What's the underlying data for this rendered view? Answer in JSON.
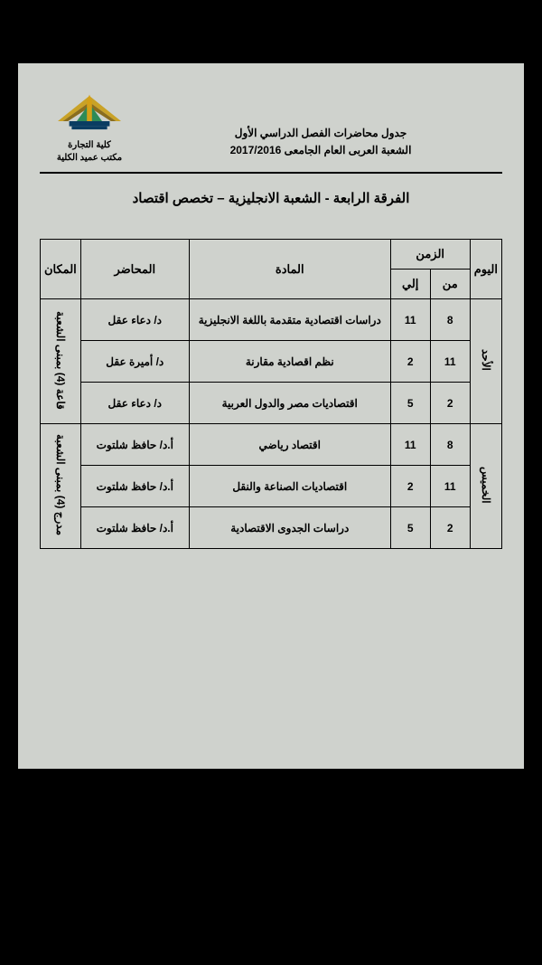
{
  "header": {
    "line1": "جدول محاضرات الفصل الدراسي الأول",
    "line2": "الشعبة العربى العام الجامعى 2017/2016",
    "faculty": "كلية التجارة",
    "office": "مكتب عميد الكلية"
  },
  "page_title": "الفرقة الرابعة  - الشعبة الانجليزية – تخصص اقتصاد",
  "columns": {
    "day": "اليوم",
    "time": "الزمن",
    "from": "من",
    "to": "إلي",
    "subject": "المادة",
    "lecturer": "المحاضر",
    "place": "المكان"
  },
  "days": [
    {
      "name": "الأحد",
      "place": "قاعة (4) بمبنى الشعبة",
      "rows": [
        {
          "from": "8",
          "to": "11",
          "subject": "دراسات اقتصادية متقدمة باللغة الانجليزية",
          "lecturer": "د/ دعاء عقل"
        },
        {
          "from": "11",
          "to": "2",
          "subject": "نظم اقصادية مقارنة",
          "lecturer": "د/ أميرة عقل"
        },
        {
          "from": "2",
          "to": "5",
          "subject": "اقتصاديات مصر والدول العربية",
          "lecturer": "د/ دعاء عقل"
        }
      ]
    },
    {
      "name": "الخميس",
      "place": "مدرج (4) بمبنى الشعبة",
      "rows": [
        {
          "from": "8",
          "to": "11",
          "subject": "اقتصاد رياضي",
          "lecturer": "أ.د/ حافظ شلتوت"
        },
        {
          "from": "11",
          "to": "2",
          "subject": "اقتصاديات الصناعة والنقل",
          "lecturer": "أ.د/ حافظ شلتوت"
        },
        {
          "from": "2",
          "to": "5",
          "subject": "دراسات الجدوى الاقتصادية",
          "lecturer": "أ.د/ حافظ شلتوت"
        }
      ]
    }
  ],
  "logo_colors": {
    "wing": "#c9a227",
    "wing_dark": "#8a6d1f",
    "center": "#2e8b57",
    "obelisk": "#d4a017",
    "base": "#0a3d62"
  }
}
